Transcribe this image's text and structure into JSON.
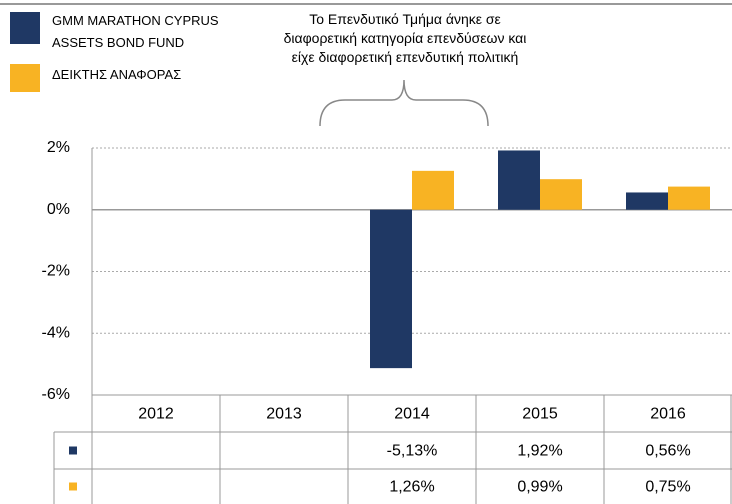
{
  "chart_data": {
    "type": "bar",
    "annotation": [
      "Το Επενδυτικό Τμήμα άνηκε σε",
      "διαφορετική κατηγορία επενδύσεων και",
      "είχε διαφορετική επενδυτική πολιτική"
    ],
    "categories": [
      "2012",
      "2013",
      "2014",
      "2015",
      "2016"
    ],
    "series": [
      {
        "name": "GMM MARATHON CYPRUS ASSETS BOND FUND",
        "color": "#1f3864",
        "values": [
          null,
          null,
          -5.13,
          1.92,
          0.56
        ],
        "value_labels": [
          null,
          null,
          "-5,13%",
          "1,92%",
          "0,56%"
        ]
      },
      {
        "name": "ΔΕΙΚΤΗΣ ΑΝΑΦΟΡΑΣ",
        "color": "#f8b323",
        "values": [
          null,
          null,
          1.26,
          0.99,
          0.75
        ],
        "value_labels": [
          null,
          null,
          "1,26%",
          "0,99%",
          "0,75%"
        ]
      }
    ],
    "ylim": [
      -6,
      2
    ],
    "yticks": [
      {
        "value": -6,
        "label": "-6%"
      },
      {
        "value": -4,
        "label": "-4%"
      },
      {
        "value": -2,
        "label": "-2%"
      },
      {
        "value": 0,
        "label": "0%"
      },
      {
        "value": 2,
        "label": "2%"
      }
    ],
    "grid": true
  }
}
